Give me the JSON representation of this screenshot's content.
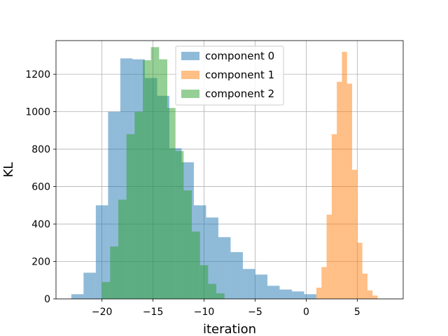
{
  "chart_data": {
    "type": "histogram",
    "xlabel": "iteration",
    "ylabel": "KL",
    "xlim": [
      -24.5,
      9.5
    ],
    "ylim": [
      0,
      1380
    ],
    "xticks": [
      -20,
      -15,
      -10,
      -5,
      0,
      5
    ],
    "xtick_labels": [
      "−20",
      "−15",
      "−10",
      "−5",
      "0",
      "5"
    ],
    "yticks": [
      0,
      200,
      400,
      600,
      800,
      1000,
      1200
    ],
    "ytick_labels": [
      "0",
      "200",
      "400",
      "600",
      "800",
      "1000",
      "1200"
    ],
    "grid": true,
    "legend_position": "upper center",
    "series": [
      {
        "name": "component 0",
        "color": "#1f77b4",
        "alpha": 0.5,
        "bin_edges": [
          -23,
          -21.8,
          -20.6,
          -19.4,
          -18.2,
          -17,
          -15.8,
          -14.6,
          -13.4,
          -12.2,
          -11,
          -9.8,
          -8.6,
          -7.4,
          -6.2,
          -5,
          -3.8,
          -2.6,
          -1.4,
          -0.2,
          1.0
        ],
        "counts": [
          25,
          140,
          500,
          1000,
          1285,
          1280,
          1180,
          1085,
          805,
          730,
          500,
          435,
          330,
          250,
          160,
          130,
          70,
          50,
          40,
          25
        ]
      },
      {
        "name": "component 1",
        "color": "#ff7f0e",
        "alpha": 0.5,
        "bin_edges": [
          1.0,
          1.5,
          2.0,
          2.5,
          3.0,
          3.5,
          4.0,
          4.5,
          5.0,
          5.5,
          6.0,
          6.5,
          7.0
        ],
        "counts": [
          60,
          170,
          450,
          880,
          1160,
          1320,
          1150,
          690,
          300,
          135,
          45,
          18
        ]
      },
      {
        "name": "component 2",
        "color": "#2ca02c",
        "alpha": 0.5,
        "bin_edges": [
          -20,
          -19.2,
          -18.4,
          -17.6,
          -16.8,
          -16,
          -15.2,
          -14.4,
          -13.6,
          -12.8,
          -12,
          -11.2,
          -10.4,
          -9.6,
          -8.8,
          -8.0
        ],
        "counts": [
          90,
          280,
          530,
          880,
          1000,
          1275,
          1345,
          1280,
          1020,
          790,
          580,
          360,
          180,
          80,
          30
        ]
      }
    ]
  }
}
